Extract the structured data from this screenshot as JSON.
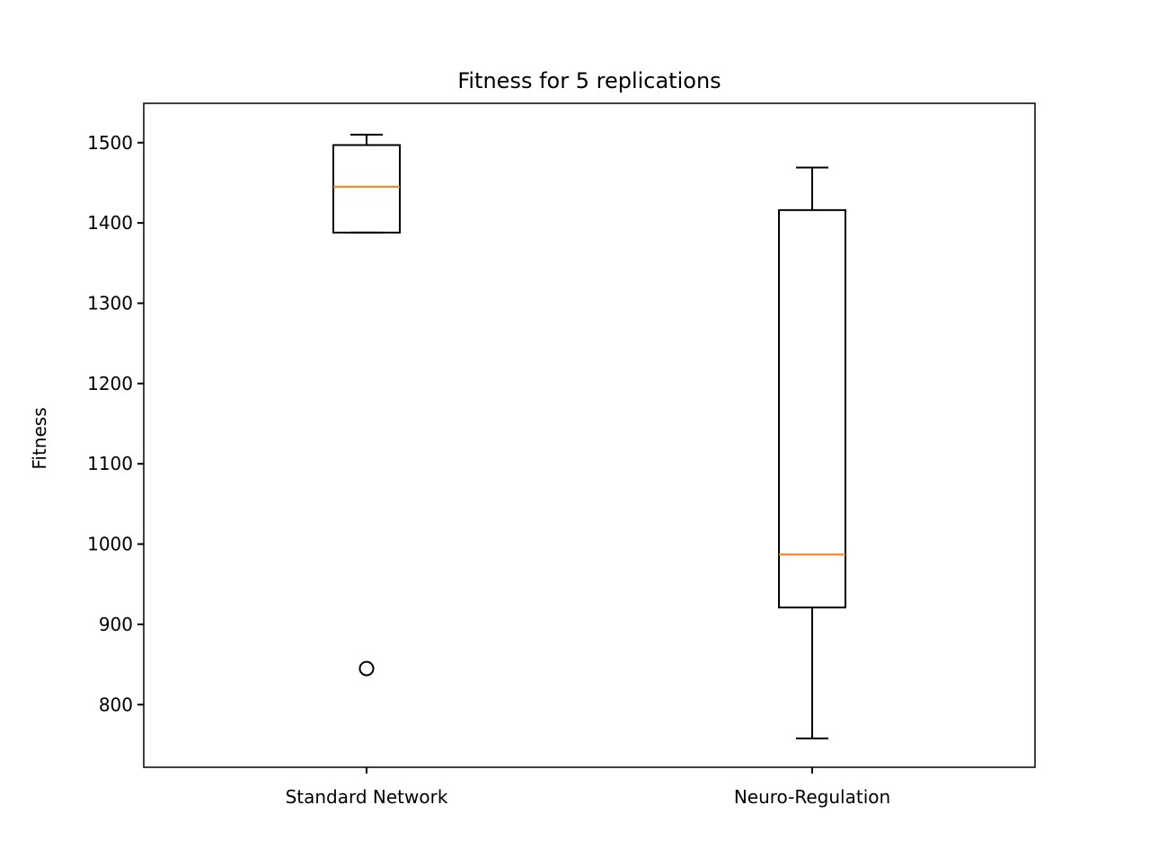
{
  "chart_data": {
    "type": "box",
    "title": "Fitness for 5 replications",
    "xlabel": "",
    "ylabel": "Fitness",
    "categories": [
      "Standard Network",
      "Neuro-Regulation"
    ],
    "boxes": [
      {
        "category": "Standard Network",
        "whisker_low": 1388,
        "q1": 1388,
        "median": 1445,
        "q3": 1497,
        "whisker_high": 1510,
        "fliers": [
          845
        ]
      },
      {
        "category": "Neuro-Regulation",
        "whisker_low": 758,
        "q1": 921,
        "median": 987,
        "q3": 1416,
        "whisker_high": 1469,
        "fliers": []
      }
    ],
    "ylim": [
      722,
      1549
    ],
    "yticks": [
      800,
      900,
      1000,
      1100,
      1200,
      1300,
      1400,
      1500
    ],
    "grid": false,
    "colors": {
      "box": "#000000",
      "median": "#ff7f0e",
      "flier": "#000000"
    }
  }
}
